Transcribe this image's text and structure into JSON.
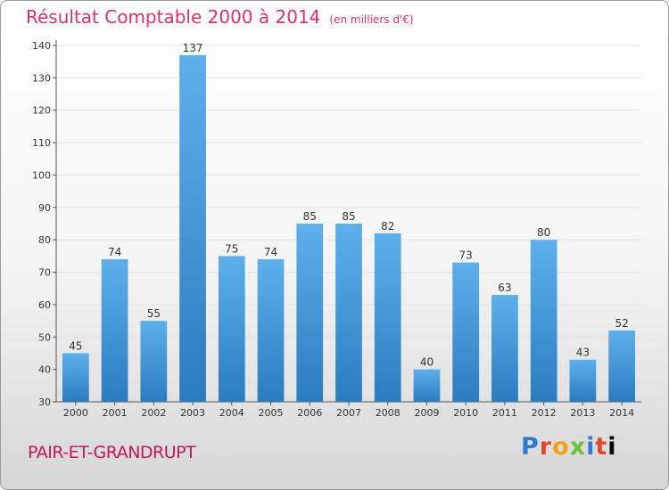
{
  "chart_data": {
    "type": "bar",
    "title": "Résultat Comptable 2000 à 2014",
    "subtitle": "(en milliers d'€)",
    "categories": [
      "2000",
      "2001",
      "2002",
      "2003",
      "2004",
      "2005",
      "2006",
      "2007",
      "2008",
      "2009",
      "2010",
      "2011",
      "2012",
      "2013",
      "2014"
    ],
    "values": [
      45,
      74,
      55,
      137,
      75,
      74,
      85,
      85,
      82,
      40,
      73,
      63,
      80,
      43,
      52
    ],
    "ylim": [
      30,
      140
    ],
    "yticks": [
      30,
      40,
      50,
      60,
      70,
      80,
      90,
      100,
      110,
      120,
      130,
      140
    ],
    "grid": true,
    "xlabel": "",
    "ylabel": ""
  },
  "footer": {
    "commune": "PAIR-ET-GRANDRUPT",
    "logo": "Proxiti"
  },
  "colors": {
    "bar_light": "#5eb0ec",
    "bar_dark": "#2a7cc0",
    "title": "#d6336c"
  }
}
